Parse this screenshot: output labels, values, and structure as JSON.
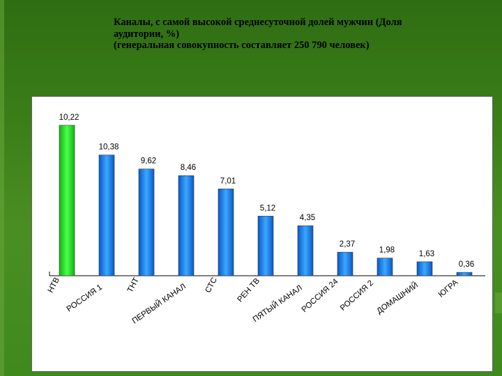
{
  "header": {
    "title_lines": [
      "Каналы, с самой высокой среднесуточной долей мужчин (Доля",
      "аудитории, %)",
      "(генеральная совокупность составляет 250 790 человек)"
    ]
  },
  "colors": {
    "background": "#3a7d18",
    "highlight_bar": "#22dd22",
    "bar": "#1e88f0"
  },
  "chart_data": {
    "type": "bar",
    "title": "",
    "xlabel": "",
    "ylabel": "",
    "grid": false,
    "legend": "none",
    "ylim": [
      0,
      10.5
    ],
    "categories": [
      "НТВ",
      "РОССИЯ 1",
      "ТНТ",
      "ПЕРВЫЙ КАНАЛ",
      "СТС",
      "РЕН ТВ",
      "ПЯТЫЙ КАНАЛ",
      "РОССИЯ 24",
      "РОССИЯ 2",
      "ДОМАШНИЙ",
      "ЮГРА"
    ],
    "values": [
      10.22,
      10.38,
      9.62,
      8.46,
      7.01,
      5.12,
      4.35,
      2.37,
      1.98,
      1.63,
      0.36
    ],
    "value_labels": [
      "10,22",
      "10,38",
      "9,62",
      "8,46",
      "7,01",
      "5,12",
      "4,35",
      "2,37",
      "1,98",
      "1,63",
      "0,36"
    ],
    "display_heights": [
      10.22,
      8.2,
      7.25,
      6.8,
      5.9,
      4.05,
      3.4,
      1.6,
      1.2,
      0.95,
      0.23
    ]
  }
}
